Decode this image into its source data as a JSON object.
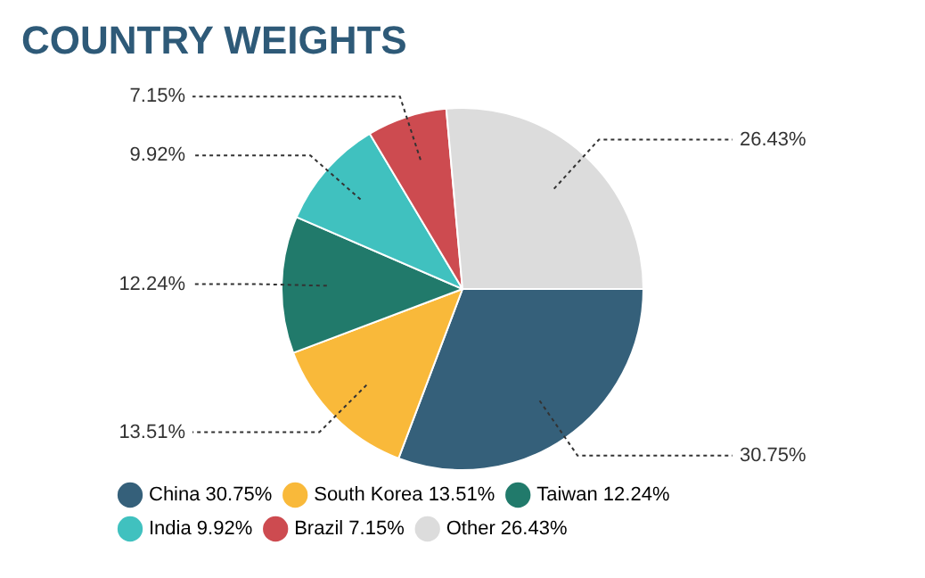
{
  "chart_data": {
    "type": "pie",
    "title": "COUNTRY WEIGHTS",
    "categories": [
      "China",
      "South Korea",
      "Taiwan",
      "India",
      "Brazil",
      "Other"
    ],
    "values": [
      30.75,
      13.51,
      12.24,
      9.92,
      7.15,
      26.43
    ],
    "value_labels": [
      "30.75%",
      "13.51%",
      "12.24%",
      "9.92%",
      "7.15%",
      "26.43%"
    ],
    "colors": [
      "#35607a",
      "#f9b93a",
      "#217a6b",
      "#40c1bf",
      "#cd4b50",
      "#dcdcdc"
    ],
    "legend": "bottom left"
  }
}
